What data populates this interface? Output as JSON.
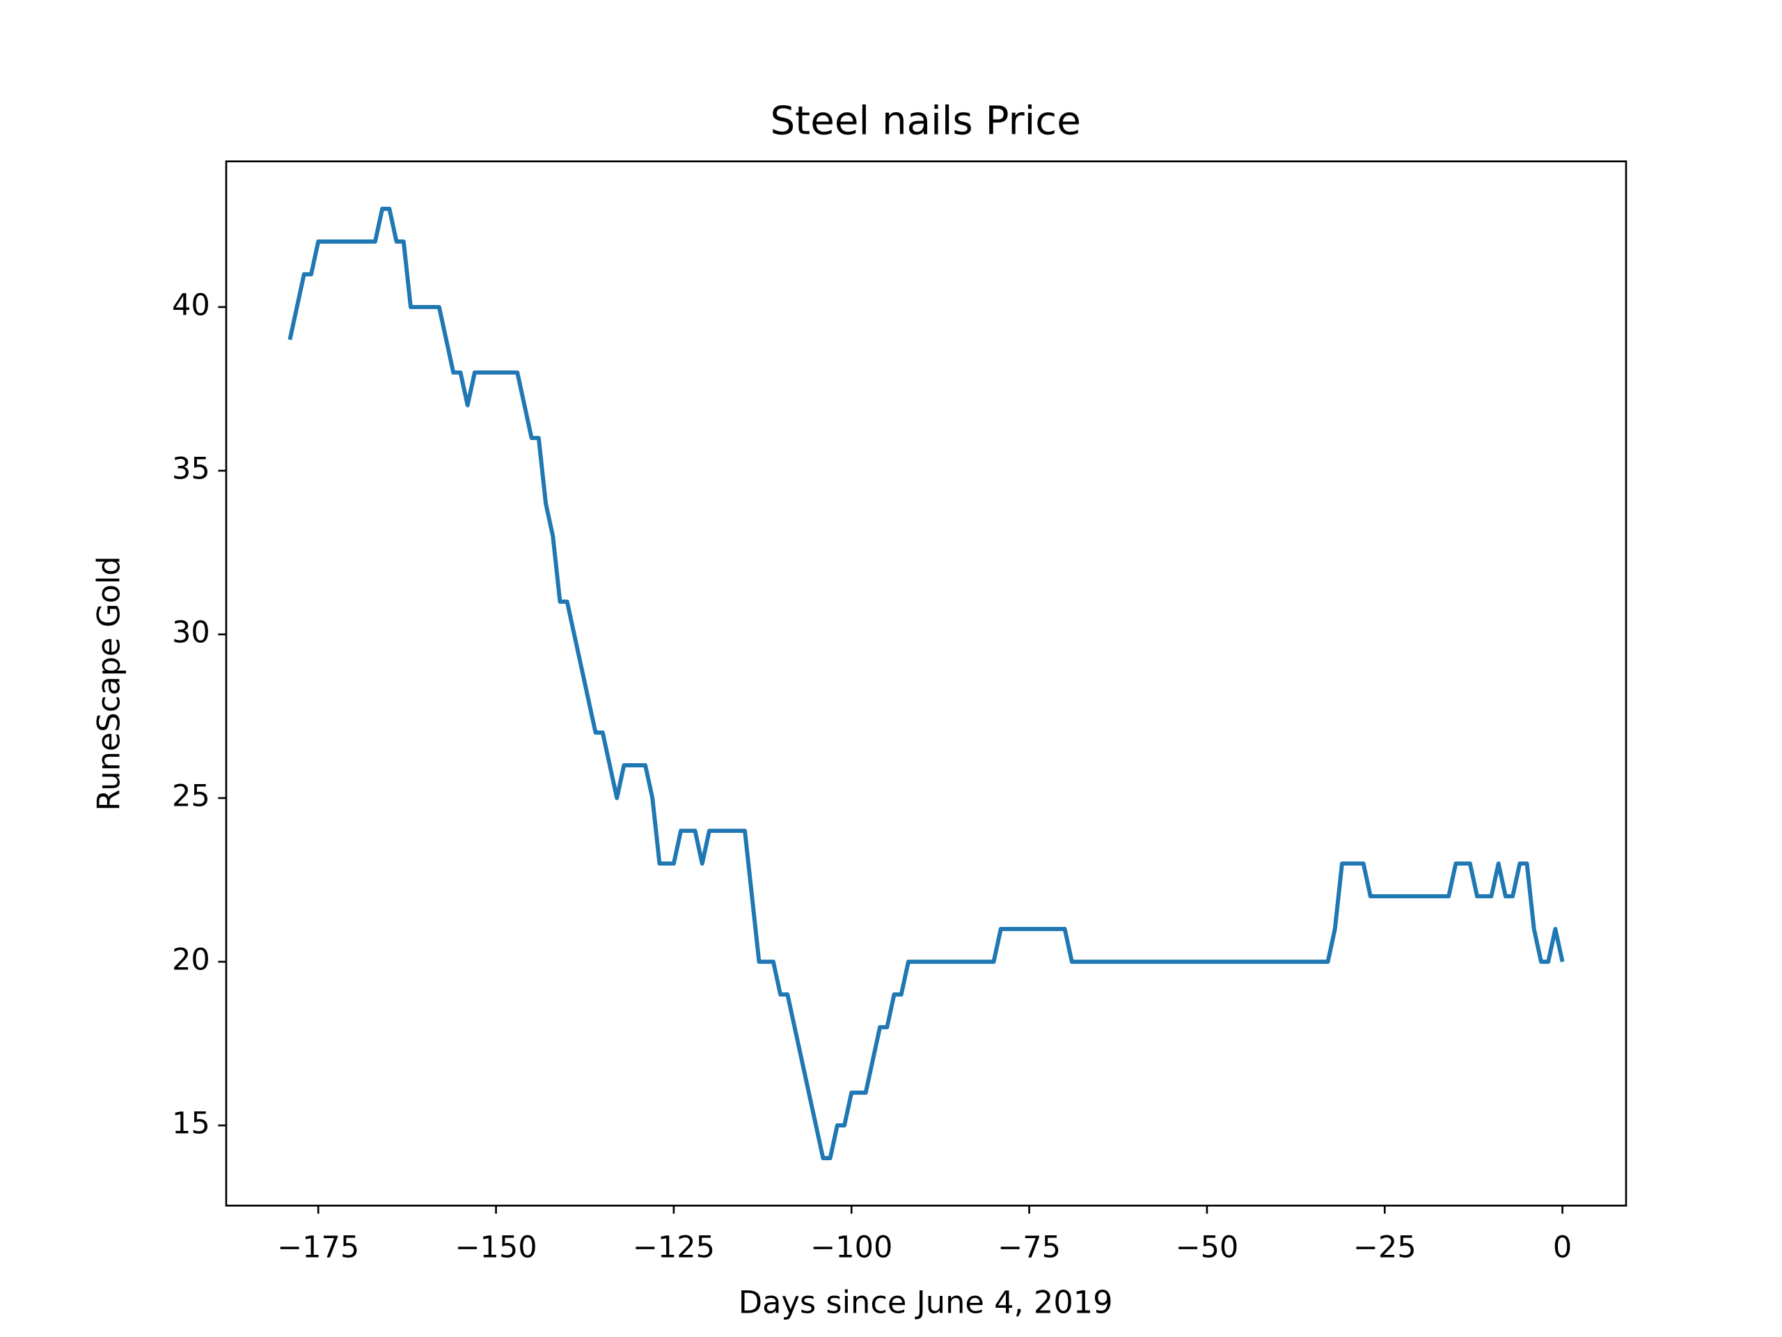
{
  "chart_data": {
    "type": "line",
    "title": "Steel nails Price",
    "xlabel": "Days since June 4, 2019",
    "ylabel": "RuneScape Gold",
    "xlim": [
      -187.95,
      8.95
    ],
    "ylim": [
      12.55,
      44.45
    ],
    "xticks": [
      {
        "value": -175,
        "label": "−175"
      },
      {
        "value": -150,
        "label": "−150"
      },
      {
        "value": -125,
        "label": "−125"
      },
      {
        "value": -100,
        "label": "−100"
      },
      {
        "value": -75,
        "label": "−75"
      },
      {
        "value": -50,
        "label": "−50"
      },
      {
        "value": -25,
        "label": "−25"
      },
      0
    ],
    "yticks": [
      15,
      20,
      25,
      30,
      35,
      40
    ],
    "grid": false,
    "series": [
      {
        "color": "#1f77b4",
        "x": [
          -179,
          -178,
          -177,
          -176,
          -175,
          -174,
          -173,
          -172,
          -171,
          -170,
          -169,
          -168,
          -167,
          -166,
          -165,
          -164,
          -163,
          -162,
          -161,
          -160,
          -159,
          -158,
          -157,
          -156,
          -155,
          -154,
          -153,
          -152,
          -151,
          -150,
          -149,
          -148,
          -147,
          -146,
          -145,
          -144,
          -143,
          -142,
          -141,
          -140,
          -139,
          -138,
          -137,
          -136,
          -135,
          -134,
          -133,
          -132,
          -131,
          -130,
          -129,
          -128,
          -127,
          -126,
          -125,
          -124,
          -123,
          -122,
          -121,
          -120,
          -119,
          -118,
          -117,
          -116,
          -115,
          -114,
          -113,
          -112,
          -111,
          -110,
          -109,
          -108,
          -107,
          -106,
          -105,
          -104,
          -103,
          -102,
          -101,
          -100,
          -99,
          -98,
          -97,
          -96,
          -95,
          -94,
          -93,
          -92,
          -91,
          -90,
          -89,
          -88,
          -87,
          -86,
          -85,
          -84,
          -83,
          -82,
          -81,
          -80,
          -79,
          -78,
          -77,
          -76,
          -75,
          -74,
          -73,
          -72,
          -71,
          -70,
          -69,
          -68,
          -67,
          -66,
          -65,
          -64,
          -63,
          -62,
          -61,
          -60,
          -59,
          -58,
          -57,
          -56,
          -55,
          -54,
          -53,
          -52,
          -51,
          -50,
          -49,
          -48,
          -47,
          -46,
          -45,
          -44,
          -43,
          -42,
          -41,
          -40,
          -39,
          -38,
          -37,
          -36,
          -35,
          -34,
          -33,
          -32,
          -31,
          -30,
          -29,
          -28,
          -27,
          -26,
          -25,
          -24,
          -23,
          -22,
          -21,
          -20,
          -19,
          -18,
          -17,
          -16,
          -15,
          -14,
          -13,
          -12,
          -11,
          -10,
          -9,
          -8,
          -7,
          -6,
          -5,
          -4,
          -3,
          -2,
          -1,
          0
        ],
        "values": [
          39,
          40,
          41,
          41,
          42,
          42,
          42,
          42,
          42,
          42,
          42,
          42,
          42,
          43,
          43,
          42,
          42,
          40,
          40,
          40,
          40,
          40,
          39,
          38,
          38,
          37,
          38,
          38,
          38,
          38,
          38,
          38,
          38,
          37,
          36,
          36,
          34,
          33,
          31,
          31,
          30,
          29,
          28,
          27,
          27,
          26,
          25,
          26,
          26,
          26,
          26,
          25,
          23,
          23,
          23,
          24,
          24,
          24,
          23,
          24,
          24,
          24,
          24,
          24,
          24,
          22,
          20,
          20,
          20,
          19,
          19,
          18,
          17,
          16,
          15,
          14,
          14,
          15,
          15,
          16,
          16,
          16,
          17,
          18,
          18,
          19,
          19,
          20,
          20,
          20,
          20,
          20,
          20,
          20,
          20,
          20,
          20,
          20,
          20,
          20,
          21,
          21,
          21,
          21,
          21,
          21,
          21,
          21,
          21,
          21,
          20,
          20,
          20,
          20,
          20,
          20,
          20,
          20,
          20,
          20,
          20,
          20,
          20,
          20,
          20,
          20,
          20,
          20,
          20,
          20,
          20,
          20,
          20,
          20,
          20,
          20,
          20,
          20,
          20,
          20,
          20,
          20,
          20,
          20,
          20,
          20,
          20,
          21,
          23,
          23,
          23,
          23,
          22,
          22,
          22,
          22,
          22,
          22,
          22,
          22,
          22,
          22,
          22,
          22,
          23,
          23,
          23,
          22,
          22,
          22,
          23,
          22,
          22,
          23,
          23,
          21,
          20,
          20,
          21,
          20
        ]
      }
    ]
  }
}
